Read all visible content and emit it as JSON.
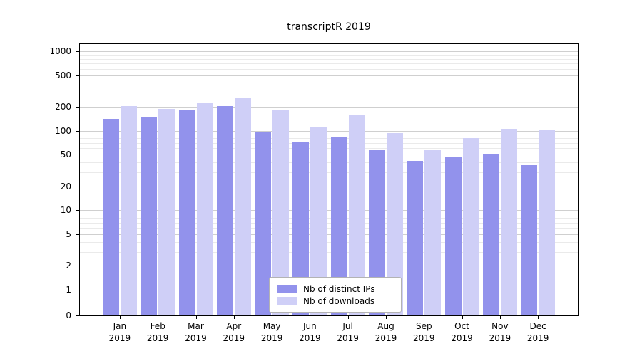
{
  "chart_data": {
    "type": "bar",
    "title": "transcriptR 2019",
    "scale": "symlog",
    "xlabel": "",
    "ylabel": "",
    "categories": [
      "Jan",
      "Feb",
      "Mar",
      "Apr",
      "May",
      "Jun",
      "Jul",
      "Aug",
      "Sep",
      "Oct",
      "Nov",
      "Dec"
    ],
    "year_label": "2019",
    "series": [
      {
        "name": "Nb of distinct IPs",
        "color": "#9292ec",
        "values": [
          140,
          148,
          183,
          205,
          97,
          73,
          84,
          57,
          42,
          46,
          51,
          37
        ]
      },
      {
        "name": "Nb of downloads",
        "color": "#cfcff7",
        "values": [
          205,
          190,
          228,
          258,
          183,
          112,
          155,
          93,
          58,
          80,
          106,
          101
        ]
      }
    ],
    "yticks": [
      0,
      1,
      2,
      5,
      10,
      20,
      50,
      100,
      200,
      500,
      1000
    ],
    "ylim": [
      0,
      1000
    ],
    "grid": "horizontal",
    "legend_position": "bottom-center"
  }
}
